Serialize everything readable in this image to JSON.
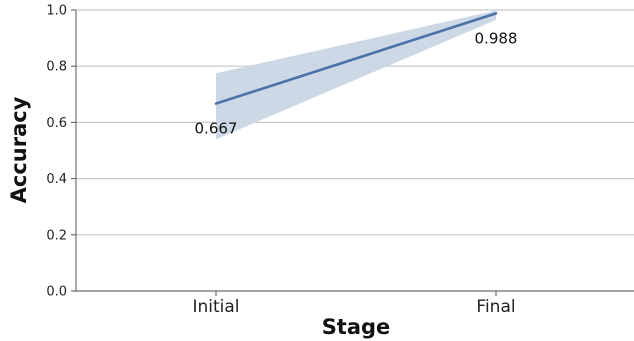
{
  "chart_data": {
    "type": "line",
    "categories": [
      "Initial",
      "Final"
    ],
    "series": [
      {
        "values": [
          0.667,
          0.988
        ],
        "band_lower": [
          0.54,
          0.965
        ],
        "band_upper": [
          0.775,
          0.998
        ]
      }
    ],
    "data_labels": [
      "0.667",
      "0.988"
    ],
    "xlabel": "Stage",
    "ylabel": "Accuracy",
    "ylim": [
      0.0,
      1.0
    ],
    "yticks": [
      0.0,
      0.2,
      0.4,
      0.6,
      0.8,
      1.0
    ],
    "ytick_labels": [
      "0.0",
      "0.2",
      "0.4",
      "0.6",
      "0.8",
      "1.0"
    ],
    "grid": true,
    "colors": {
      "line": "#4c72a8",
      "band": "#c9d6e5",
      "grid": "#c8c8c8",
      "axis": "#555555"
    }
  }
}
